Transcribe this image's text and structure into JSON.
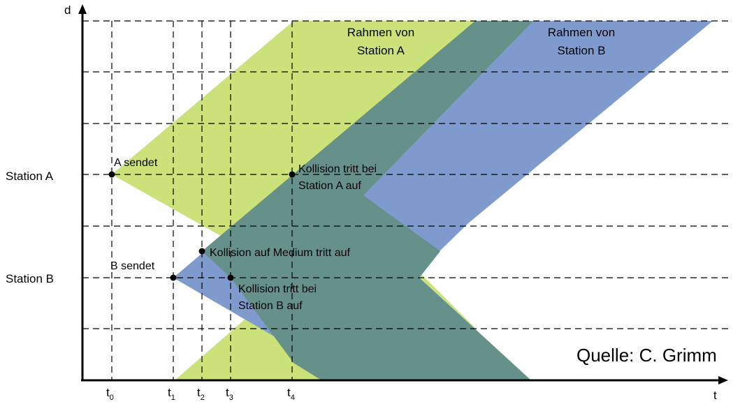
{
  "axes": {
    "x_label": "t",
    "y_label": "d"
  },
  "stations": {
    "a": "Station A",
    "b": "Station B"
  },
  "frames": {
    "a": {
      "line1": "Rahmen von",
      "line2": "Station A",
      "color": "#cbe27a"
    },
    "b": {
      "line1": "Rahmen von",
      "line2": "Station B",
      "color": "#7f9acd"
    },
    "overlap_color": "#66908a"
  },
  "events": {
    "a_sends": "A sendet",
    "b_sends": "B sendet",
    "collision_medium": "Kollision auf Medium tritt auf",
    "collision_a": {
      "line1": "Kollision tritt bei",
      "line2": "Station A auf"
    },
    "collision_b": {
      "line1": "Kollision tritt bei",
      "line2": "Station B auf"
    }
  },
  "time_marks": [
    {
      "base": "t",
      "sub": "0"
    },
    {
      "base": "t",
      "sub": "1"
    },
    {
      "base": "t",
      "sub": "2"
    },
    {
      "base": "t",
      "sub": "3"
    },
    {
      "base": "t",
      "sub": "4"
    }
  ],
  "source": "Quelle: C. Grimm"
}
